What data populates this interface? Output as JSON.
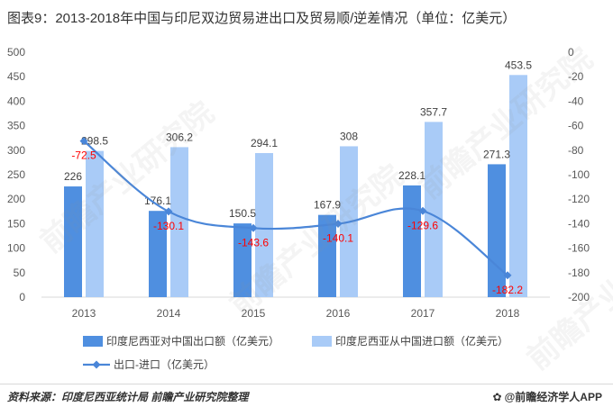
{
  "title": "图表9：2013-2018年中国与印尼双边贸易进出口及贸易顺/逆差情况（单位：亿美元）",
  "source": "资料来源：印度尼西亚统计局 前瞻产业研究院整理",
  "brand": "@前瞻经济学人APP",
  "watermark": "前瞻产业研究院",
  "colors": {
    "export": "#4f8fe0",
    "import": "#a9cbf7",
    "balance": "#4a86d8",
    "balance_label": "#ff0000",
    "axis_text": "#595959",
    "grid": "#d9d9d9"
  },
  "chart_data": {
    "type": "bar",
    "categories": [
      "2013",
      "2014",
      "2015",
      "2016",
      "2017",
      "2018"
    ],
    "series": [
      {
        "name": "印度尼西亚对中国出口额（亿美元）",
        "type": "bar",
        "axis": "left",
        "values": [
          226,
          176.1,
          150.5,
          167.9,
          228.1,
          271.3
        ]
      },
      {
        "name": "印度尼西亚从中国进口额（亿美元）",
        "type": "bar",
        "axis": "left",
        "values": [
          298.5,
          306.2,
          294.1,
          308,
          357.7,
          453.5
        ]
      },
      {
        "name": "出口-进口（亿美元）",
        "type": "line",
        "axis": "right",
        "values": [
          -72.5,
          -130.1,
          -143.6,
          -140.1,
          -129.6,
          -182.2
        ]
      }
    ],
    "left_axis": {
      "ylim": [
        0,
        500
      ],
      "ticks": [
        "0",
        "50",
        "100",
        "150",
        "200",
        "250",
        "300",
        "350",
        "400",
        "450",
        "500"
      ]
    },
    "right_axis": {
      "ylim": [
        -200,
        0
      ],
      "ticks": [
        "-200",
        "-180",
        "-160",
        "-140",
        "-120",
        "-100",
        "-80",
        "-60",
        "-40",
        "-20",
        "0"
      ]
    },
    "label_texts": {
      "export": [
        "226",
        "176.1",
        "150.5",
        "167.9",
        "228.1",
        "271.3"
      ],
      "import": [
        "298.5",
        "306.2",
        "294.1",
        "308",
        "357.7",
        "453.5"
      ],
      "balance": [
        "-72.5",
        "-130.1",
        "-143.6",
        "-140.1",
        "-129.6",
        "-182.2"
      ]
    },
    "legend": {
      "export": "印度尼西亚对中国出口额（亿美元）",
      "import": "印度尼西亚从中国进口额（亿美元）",
      "balance": "出口-进口（亿美元）"
    },
    "grid": false
  }
}
